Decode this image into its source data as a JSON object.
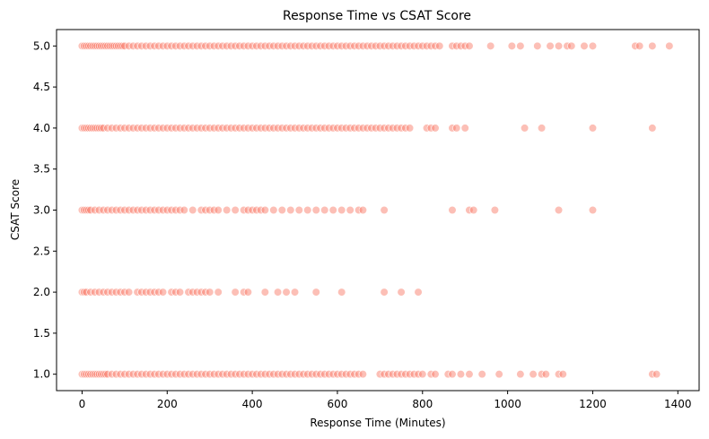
{
  "chart_data": {
    "type": "scatter",
    "title": "Response Time vs CSAT Score",
    "xlabel": "Response Time (Minutes)",
    "ylabel": "CSAT Score",
    "xlim": [
      -60,
      1450
    ],
    "ylim": [
      0.8,
      5.2
    ],
    "xticks": [
      0,
      200,
      400,
      600,
      800,
      1000,
      1200,
      1400
    ],
    "xtick_labels": [
      "0",
      "200",
      "400",
      "600",
      "800",
      "1000",
      "1200",
      "1400"
    ],
    "yticks": [
      1.0,
      1.5,
      2.0,
      2.5,
      3.0,
      3.5,
      4.0,
      4.5,
      5.0
    ],
    "ytick_labels": [
      "1.0",
      "1.5",
      "2.0",
      "2.5",
      "3.0",
      "3.5",
      "4.0",
      "4.5",
      "5.0"
    ],
    "grid": false,
    "marker_color": "#fa7f6d",
    "marker_edge_color": "#ffffff",
    "marker_opacity": 0.5,
    "series": [
      {
        "values_by_score": [
          {
            "y": 5.0,
            "x": [
              0,
              5,
              10,
              15,
              20,
              25,
              30,
              35,
              40,
              45,
              50,
              55,
              60,
              65,
              70,
              75,
              80,
              85,
              90,
              95,
              100,
              110,
              120,
              130,
              140,
              150,
              160,
              170,
              180,
              190,
              200,
              210,
              220,
              230,
              240,
              250,
              260,
              270,
              280,
              290,
              300,
              310,
              320,
              330,
              340,
              350,
              360,
              370,
              380,
              390,
              400,
              410,
              420,
              430,
              440,
              450,
              460,
              470,
              480,
              490,
              500,
              510,
              520,
              530,
              540,
              550,
              560,
              570,
              580,
              590,
              600,
              610,
              620,
              630,
              640,
              650,
              660,
              670,
              680,
              690,
              700,
              710,
              720,
              730,
              740,
              750,
              760,
              770,
              780,
              790,
              800,
              810,
              820,
              830,
              840,
              870,
              880,
              890,
              900,
              910,
              960,
              1010,
              1030,
              1070,
              1100,
              1120,
              1140,
              1150,
              1180,
              1200,
              1300,
              1310,
              1340,
              1380
            ]
          },
          {
            "y": 4.0,
            "x": [
              0,
              5,
              10,
              15,
              20,
              25,
              30,
              35,
              40,
              45,
              50,
              60,
              70,
              80,
              90,
              100,
              110,
              120,
              130,
              140,
              150,
              160,
              170,
              180,
              190,
              200,
              210,
              220,
              230,
              240,
              250,
              260,
              270,
              280,
              290,
              300,
              310,
              320,
              330,
              340,
              350,
              360,
              370,
              380,
              390,
              400,
              410,
              420,
              430,
              440,
              450,
              460,
              470,
              480,
              490,
              500,
              510,
              520,
              530,
              540,
              550,
              560,
              570,
              580,
              590,
              600,
              610,
              620,
              630,
              640,
              650,
              660,
              670,
              680,
              690,
              700,
              710,
              720,
              730,
              740,
              750,
              760,
              770,
              810,
              820,
              830,
              870,
              880,
              900,
              1040,
              1080,
              1200,
              1340
            ]
          },
          {
            "y": 3.0,
            "x": [
              0,
              5,
              10,
              15,
              20,
              30,
              40,
              50,
              60,
              70,
              80,
              90,
              100,
              110,
              120,
              130,
              140,
              150,
              160,
              170,
              180,
              190,
              200,
              210,
              220,
              230,
              240,
              260,
              280,
              290,
              300,
              310,
              320,
              340,
              360,
              380,
              390,
              400,
              410,
              420,
              430,
              450,
              470,
              490,
              510,
              530,
              550,
              570,
              590,
              610,
              630,
              650,
              660,
              710,
              870,
              910,
              920,
              970,
              1120,
              1200
            ]
          },
          {
            "y": 2.0,
            "x": [
              0,
              5,
              10,
              20,
              30,
              40,
              50,
              60,
              70,
              80,
              90,
              100,
              110,
              130,
              140,
              150,
              160,
              170,
              180,
              190,
              210,
              220,
              230,
              250,
              260,
              270,
              280,
              290,
              300,
              320,
              360,
              380,
              390,
              430,
              460,
              480,
              500,
              550,
              610,
              710,
              750,
              790
            ]
          },
          {
            "y": 1.0,
            "x": [
              0,
              5,
              10,
              15,
              20,
              25,
              30,
              35,
              40,
              45,
              50,
              55,
              60,
              70,
              80,
              90,
              100,
              110,
              120,
              130,
              140,
              150,
              160,
              170,
              180,
              190,
              200,
              210,
              220,
              230,
              240,
              250,
              260,
              270,
              280,
              290,
              300,
              310,
              320,
              330,
              340,
              350,
              360,
              370,
              380,
              390,
              400,
              410,
              420,
              430,
              440,
              450,
              460,
              470,
              480,
              490,
              500,
              510,
              520,
              530,
              540,
              550,
              560,
              570,
              580,
              590,
              600,
              610,
              620,
              630,
              640,
              650,
              660,
              700,
              710,
              720,
              730,
              740,
              750,
              760,
              770,
              780,
              790,
              800,
              820,
              830,
              860,
              870,
              890,
              910,
              940,
              980,
              1030,
              1060,
              1080,
              1090,
              1120,
              1130,
              1340,
              1350
            ]
          }
        ]
      }
    ]
  }
}
